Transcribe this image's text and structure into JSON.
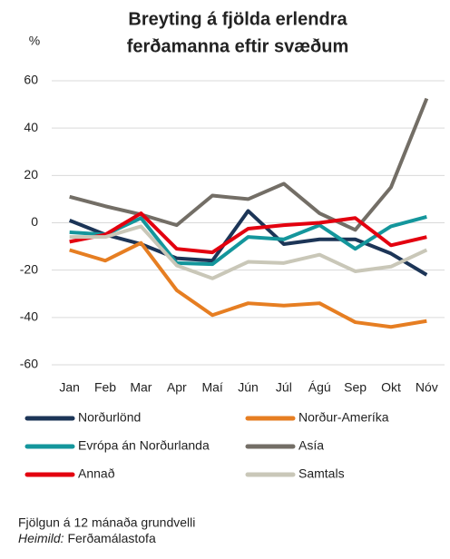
{
  "chart_data": {
    "type": "line",
    "title": [
      "Breyting á fjölda erlendra",
      "ferðamanna eftir svæðum"
    ],
    "y_label": "%",
    "categories": [
      "Jan",
      "Feb",
      "Mar",
      "Apr",
      "Maí",
      "Jún",
      "Júl",
      "Ágú",
      "Sep",
      "Okt",
      "Nóv"
    ],
    "series": [
      {
        "name": "Norðurlönd",
        "color": "#1c3557",
        "values": [
          1,
          -5,
          -9,
          -15,
          -16,
          5,
          -9,
          -7,
          -7,
          -13,
          -22
        ]
      },
      {
        "name": "Norður-Ameríka",
        "color": "#e67e22",
        "values": [
          -11.5,
          -16,
          -8.5,
          -28.5,
          -39,
          -34,
          -35,
          -34,
          -42,
          -44,
          -41.5
        ]
      },
      {
        "name": "Evrópa án Norðurlanda",
        "color": "#14969c",
        "values": [
          -4,
          -5,
          2,
          -17,
          -17.5,
          -6,
          -7,
          -1,
          -11,
          -1.5,
          2.5
        ]
      },
      {
        "name": "Asía",
        "color": "#736e66",
        "values": [
          11,
          7,
          3.5,
          -1,
          11.5,
          10,
          16.5,
          4,
          -3,
          15,
          52.5
        ]
      },
      {
        "name": "Annað",
        "color": "#e3000f",
        "values": [
          -8,
          -5,
          4,
          -11,
          -12.5,
          -2.5,
          -1,
          0,
          2,
          -9.5,
          -6
        ]
      },
      {
        "name": "Samtals",
        "color": "#c9c7b8",
        "values": [
          -6,
          -6,
          -1.5,
          -18,
          -23.5,
          -16.5,
          -17,
          -13.5,
          -20.5,
          -18.5,
          -11.5
        ]
      }
    ],
    "ylim": [
      -60,
      60
    ],
    "yticks": [
      -60,
      -40,
      -20,
      0,
      20,
      40,
      60
    ],
    "grid": true,
    "note": "Fjölgun á 12 mánaða grundvelli",
    "source_label": "Heimild:",
    "source": "Ferðamálastofa"
  }
}
